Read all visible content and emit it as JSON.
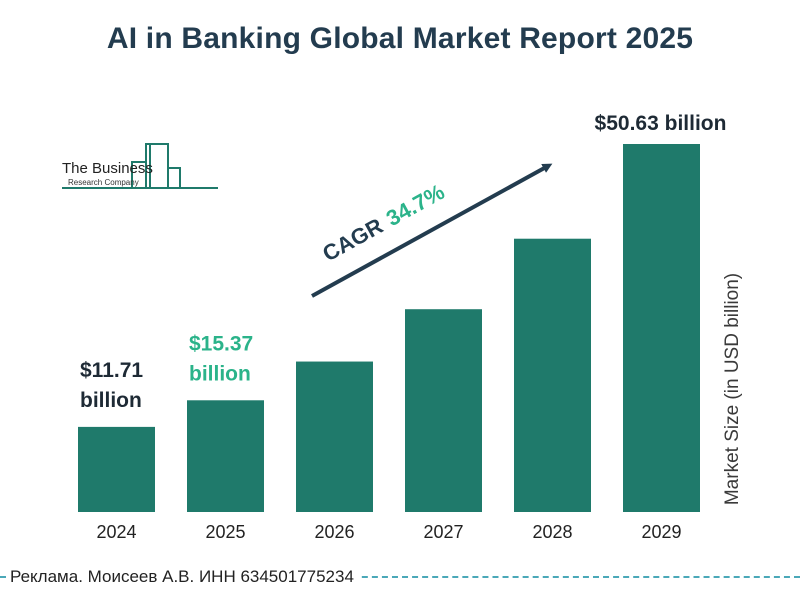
{
  "title": "AI in Banking Global Market Report 2025",
  "logo": {
    "line1": "The Business",
    "line2": "Research Company"
  },
  "cagr": {
    "label": "CAGR",
    "value": "34.7%"
  },
  "colors": {
    "bar": "#1f7a6b",
    "title": "#233c4f",
    "highlight": "#2bb38a",
    "label": "#1e2a35"
  },
  "chart_data": {
    "type": "bar",
    "title": "AI in Banking Global Market Report 2025",
    "ylabel": "Market Size (in USD billion)",
    "categories": [
      "2024",
      "2025",
      "2026",
      "2027",
      "2028",
      "2029"
    ],
    "values": [
      11.71,
      15.37,
      20.7,
      27.9,
      37.6,
      50.63
    ],
    "ylim": [
      0,
      50.63
    ],
    "grid": false,
    "data_labels": [
      {
        "index": 0,
        "line1": "$11.71",
        "line2": "billion"
      },
      {
        "index": 1,
        "line1": "$15.37",
        "line2": "billion"
      },
      {
        "index": 5,
        "line1": "$50.63 billion"
      }
    ]
  },
  "footer": {
    "text": "Реклама. Моисеев А.В. ИНН 634501775234"
  }
}
